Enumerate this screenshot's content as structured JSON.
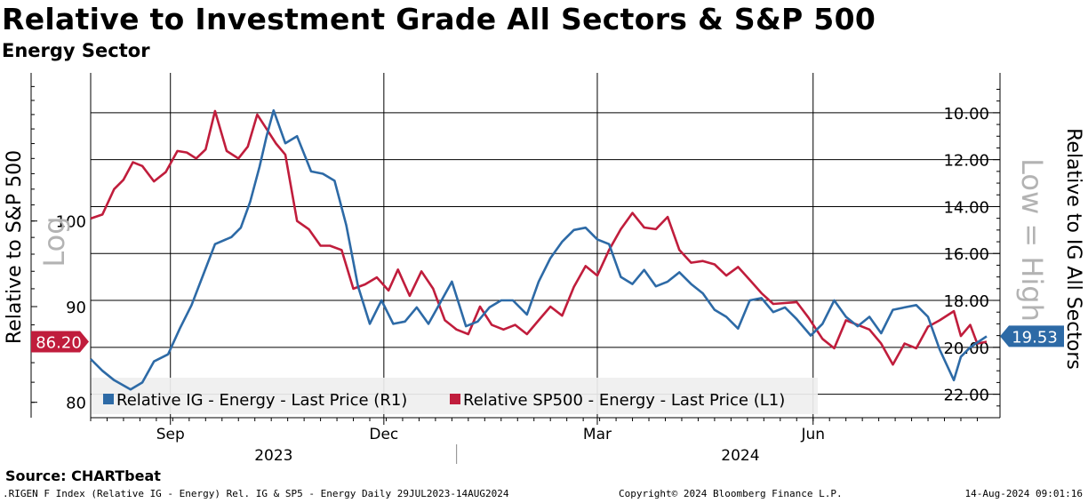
{
  "header": {
    "title": "Relative to Investment Grade All Sectors & S&P 500",
    "subtitle": "Energy Sector"
  },
  "chart_data": {
    "type": "line",
    "title": "Relative to Investment Grade All Sectors & S&P 500",
    "subtitle": "Energy Sector",
    "x_range": [
      "2023-07-29",
      "2024-08-14"
    ],
    "x_ticks": [
      {
        "date": "2023-09-01",
        "label": "Sep"
      },
      {
        "date": "2023-12-01",
        "label": "Dec"
      },
      {
        "date": "2024-03-01",
        "label": "Mar"
      },
      {
        "date": "2024-06-01",
        "label": "Jun"
      }
    ],
    "year_labels": [
      {
        "date": "2023-10-15",
        "label": "2023"
      },
      {
        "date": "2024-05-01",
        "label": "2024"
      }
    ],
    "left_axis": {
      "label": "Relative to S&P 500",
      "scale": "Log",
      "scale_label": "Log",
      "ylim": [
        78.5,
        120
      ],
      "ticks": [
        "80",
        "90",
        "100"
      ],
      "tick_values": [
        80,
        90,
        100
      ],
      "gridlines": [
        80,
        90,
        100,
        110
      ]
    },
    "right_axis": {
      "label": "Relative to IG All Sectors",
      "inverted": true,
      "inverted_label": "Low = High",
      "ylim": [
        8.3,
        23.0
      ],
      "ticks": [
        "10.00",
        "12.00",
        "14.00",
        "16.00",
        "18.00",
        "20.00",
        "22.00"
      ],
      "tick_values": [
        10,
        12,
        14,
        16,
        18,
        20,
        22
      ],
      "gridlines": [
        10,
        12,
        14,
        16,
        18,
        20,
        22
      ]
    },
    "series": [
      {
        "name": "Relative IG - Energy - Last Price (R1)",
        "axis": "right",
        "color": "#2d6aa6",
        "last_value": "19.53",
        "dates": [
          "2023-07-29",
          "2023-08-03",
          "2023-08-08",
          "2023-08-15",
          "2023-08-20",
          "2023-08-25",
          "2023-08-31",
          "2023-09-05",
          "2023-09-10",
          "2023-09-15",
          "2023-09-20",
          "2023-09-27",
          "2023-10-01",
          "2023-10-05",
          "2023-10-09",
          "2023-10-12",
          "2023-10-15",
          "2023-10-20",
          "2023-10-25",
          "2023-10-31",
          "2023-11-05",
          "2023-11-10",
          "2023-11-15",
          "2023-11-20",
          "2023-11-25",
          "2023-11-30",
          "2023-12-05",
          "2023-12-10",
          "2023-12-15",
          "2023-12-20",
          "2023-12-25",
          "2023-12-30",
          "2024-01-05",
          "2024-01-10",
          "2024-01-15",
          "2024-01-20",
          "2024-01-25",
          "2024-01-31",
          "2024-02-05",
          "2024-02-10",
          "2024-02-15",
          "2024-02-20",
          "2024-02-25",
          "2024-03-01",
          "2024-03-06",
          "2024-03-11",
          "2024-03-16",
          "2024-03-21",
          "2024-03-26",
          "2024-03-31",
          "2024-04-05",
          "2024-04-10",
          "2024-04-15",
          "2024-04-20",
          "2024-04-25",
          "2024-04-30",
          "2024-05-05",
          "2024-05-10",
          "2024-05-15",
          "2024-05-20",
          "2024-05-25",
          "2024-05-31",
          "2024-06-05",
          "2024-06-10",
          "2024-06-15",
          "2024-06-20",
          "2024-06-25",
          "2024-06-30",
          "2024-07-05",
          "2024-07-10",
          "2024-07-15",
          "2024-07-20",
          "2024-07-25",
          "2024-07-31",
          "2024-08-03",
          "2024-08-07",
          "2024-08-10",
          "2024-08-14"
        ],
        "values": [
          20.5,
          21.0,
          21.4,
          21.8,
          21.5,
          20.6,
          20.3,
          19.2,
          18.2,
          16.9,
          15.6,
          15.3,
          14.9,
          13.8,
          12.3,
          11.0,
          9.9,
          11.3,
          11.0,
          12.5,
          12.6,
          12.9,
          14.8,
          17.4,
          19.0,
          18.0,
          19.0,
          18.9,
          18.3,
          19.0,
          18.1,
          17.2,
          19.1,
          18.9,
          18.3,
          18.0,
          18.0,
          18.6,
          17.2,
          16.2,
          15.5,
          15.0,
          14.9,
          15.4,
          15.6,
          17.0,
          17.3,
          16.7,
          17.4,
          17.2,
          16.8,
          17.3,
          17.7,
          18.4,
          18.7,
          19.2,
          18.0,
          17.9,
          18.5,
          18.3,
          18.8,
          19.5,
          19.0,
          18.0,
          18.7,
          19.1,
          18.7,
          19.4,
          18.4,
          18.3,
          18.2,
          18.7,
          20.1,
          21.4,
          20.4,
          20.0,
          19.8,
          19.53
        ]
      },
      {
        "name": "Relative SP500 - Energy - Last Price (L1)",
        "axis": "left",
        "color": "#c01d3c",
        "last_value": "86.20",
        "dates": [
          "2023-07-29",
          "2023-08-03",
          "2023-08-08",
          "2023-08-12",
          "2023-08-16",
          "2023-08-20",
          "2023-08-25",
          "2023-08-30",
          "2023-09-04",
          "2023-09-08",
          "2023-09-12",
          "2023-09-16",
          "2023-09-20",
          "2023-09-25",
          "2023-09-30",
          "2023-10-04",
          "2023-10-08",
          "2023-10-12",
          "2023-10-16",
          "2023-10-20",
          "2023-10-25",
          "2023-10-30",
          "2023-11-04",
          "2023-11-08",
          "2023-11-13",
          "2023-11-18",
          "2023-11-23",
          "2023-11-28",
          "2023-12-03",
          "2023-12-07",
          "2023-12-12",
          "2023-12-17",
          "2023-12-22",
          "2023-12-27",
          "2024-01-01",
          "2024-01-06",
          "2024-01-11",
          "2024-01-16",
          "2024-01-21",
          "2024-01-26",
          "2024-01-31",
          "2024-02-05",
          "2024-02-10",
          "2024-02-15",
          "2024-02-20",
          "2024-02-25",
          "2024-03-01",
          "2024-03-06",
          "2024-03-11",
          "2024-03-16",
          "2024-03-21",
          "2024-03-26",
          "2024-03-31",
          "2024-04-05",
          "2024-04-10",
          "2024-04-15",
          "2024-04-20",
          "2024-04-25",
          "2024-04-30",
          "2024-05-05",
          "2024-05-10",
          "2024-05-15",
          "2024-05-20",
          "2024-05-25",
          "2024-05-30",
          "2024-06-05",
          "2024-06-10",
          "2024-06-15",
          "2024-06-20",
          "2024-06-25",
          "2024-06-30",
          "2024-07-05",
          "2024-07-10",
          "2024-07-15",
          "2024-07-20",
          "2024-07-25",
          "2024-07-31",
          "2024-08-03",
          "2024-08-07",
          "2024-08-10",
          "2024-08-14"
        ],
        "values": [
          100.3,
          100.8,
          104.0,
          105.2,
          107.5,
          107.0,
          105.0,
          106.2,
          109.0,
          108.8,
          108.0,
          109.2,
          114.5,
          109.0,
          108.0,
          109.6,
          114.0,
          112.0,
          110.0,
          108.5,
          100.0,
          99.0,
          97.0,
          97.0,
          96.5,
          92.0,
          92.5,
          93.3,
          91.8,
          94.2,
          91.2,
          94.0,
          92.0,
          88.5,
          87.5,
          87.0,
          90.0,
          88.0,
          87.5,
          88.0,
          87.0,
          88.5,
          90.0,
          89.0,
          92.2,
          94.6,
          93.5,
          96.5,
          99.0,
          101.0,
          99.2,
          99.0,
          100.5,
          96.5,
          95.0,
          95.2,
          94.8,
          93.5,
          94.5,
          93.0,
          91.5,
          90.3,
          90.4,
          90.5,
          88.8,
          86.5,
          85.5,
          88.5,
          88.0,
          87.5,
          86.0,
          83.8,
          86.0,
          85.5,
          87.8,
          88.5,
          89.5,
          86.8,
          88.0,
          86.0,
          86.2
        ]
      }
    ]
  },
  "badges": {
    "right_value": "19.53",
    "left_value": "86.20"
  },
  "legend": {
    "item1": "Relative IG - Energy - Last Price (R1)",
    "item2": "Relative SP500 - Energy - Last Price (L1)"
  },
  "footer": {
    "source": "Source: CHARTbeat",
    "left": ".RIGEN F Index (Relative IG - Energy) Rel. IG & SP5 - Energy  Daily 29JUL2023-14AUG2024",
    "center": "Copyright© 2024 Bloomberg Finance L.P.",
    "right": "14-Aug-2024 09:01:16"
  },
  "colors": {
    "ig_line": "#2d6aa6",
    "sp_line": "#c01d3c",
    "grid": "#000000",
    "watermark": "#b3b3b3"
  }
}
